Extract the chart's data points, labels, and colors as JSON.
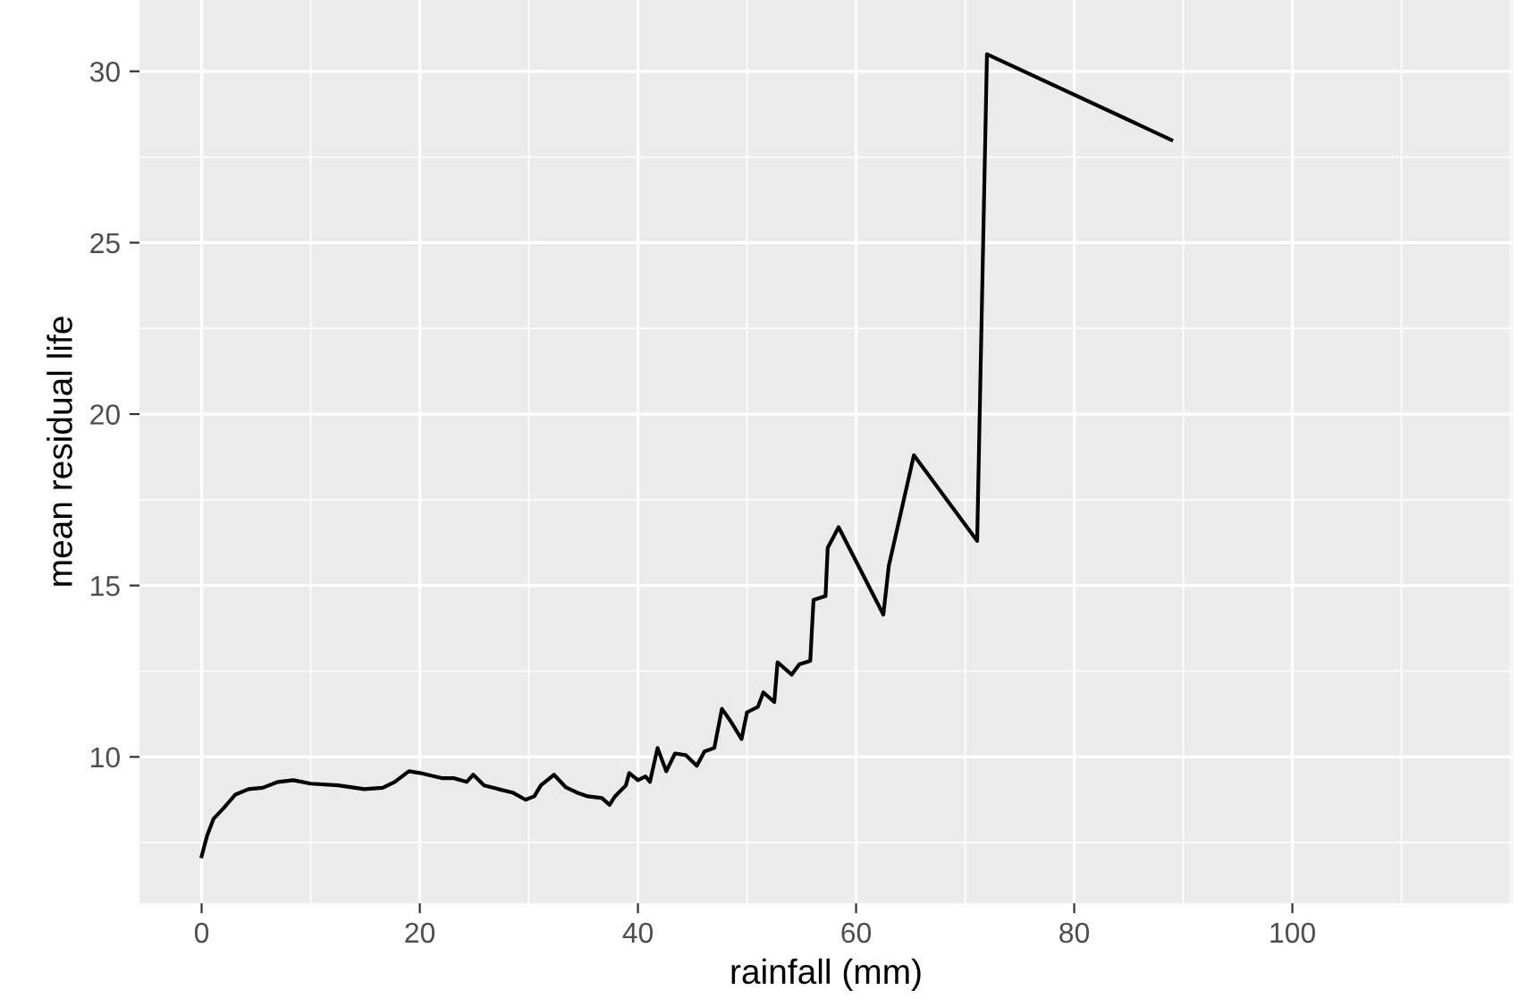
{
  "chart_data": {
    "type": "line",
    "xlabel": "rainfall (mm)",
    "ylabel": "mean residual life",
    "xlim": [
      -5.7,
      120.2
    ],
    "ylim": [
      5.73,
      32.08
    ],
    "xticks": [
      0,
      20,
      40,
      60,
      80,
      100
    ],
    "yticks": [
      10,
      15,
      20,
      25,
      30
    ],
    "grid": true,
    "series": [
      {
        "color": "#000000",
        "x": [
          0,
          0.5,
          1.1,
          2,
          3.1,
          4.3,
          5.6,
          7,
          8.4,
          10,
          12.5,
          14.9,
          16.6,
          17.7,
          19,
          20,
          22,
          23.1,
          24.3,
          24.9,
          25.9,
          27.2,
          28.5,
          29.7,
          30.5,
          31.1,
          32.3,
          33.4,
          34.4,
          35.4,
          36.7,
          37.4,
          37.9,
          38.9,
          39.2,
          40,
          40.7,
          41.1,
          41.8,
          42.6,
          43.4,
          44.4,
          45.4,
          46.1,
          47,
          47.7,
          48.5,
          49.5,
          50,
          51,
          51.5,
          52.5,
          52.8,
          54.1,
          54.8,
          55.8,
          56.1,
          57.2,
          57.4,
          58.4,
          62.5,
          63,
          65.3,
          71.1,
          72,
          88.9
        ],
        "values": [
          7.1,
          7.7,
          8.2,
          8.5,
          8.9,
          9.06,
          9.1,
          9.27,
          9.32,
          9.22,
          9.17,
          9.06,
          9.1,
          9.27,
          9.58,
          9.53,
          9.38,
          9.38,
          9.27,
          9.48,
          9.17,
          9.06,
          8.96,
          8.75,
          8.85,
          9.17,
          9.48,
          9.11,
          8.96,
          8.85,
          8.8,
          8.6,
          8.85,
          9.17,
          9.53,
          9.32,
          9.43,
          9.27,
          10.26,
          9.58,
          10.1,
          10.05,
          9.74,
          10.16,
          10.26,
          11.4,
          11.04,
          10.52,
          11.3,
          11.46,
          11.88,
          11.6,
          12.76,
          12.4,
          12.7,
          12.8,
          14.58,
          14.69,
          16.1,
          16.7,
          14.15,
          15.57,
          18.8,
          16.3,
          30.5,
          28.0
        ]
      }
    ]
  }
}
